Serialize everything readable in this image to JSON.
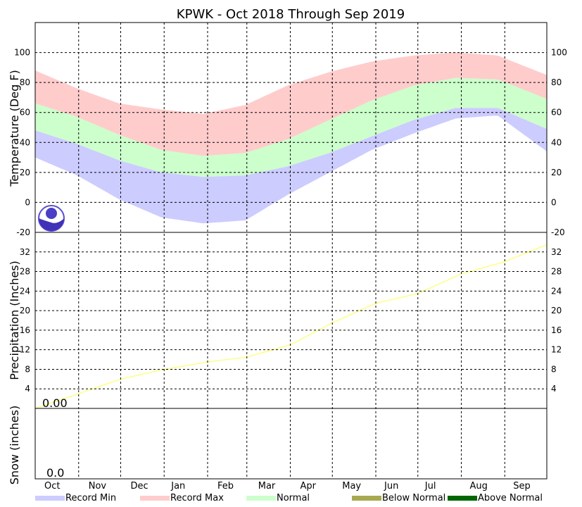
{
  "chart_data": {
    "type": "area",
    "title": "KPWK - Oct 2018 Through Sep 2019",
    "months": [
      "Oct",
      "Nov",
      "Dec",
      "Jan",
      "Feb",
      "Mar",
      "Apr",
      "May",
      "Jun",
      "Jul",
      "Aug",
      "Sep"
    ],
    "temperature": {
      "ylabel": "Temperature (Deg F)",
      "ylim": [
        -20,
        120
      ],
      "ticks": [
        "-20",
        "0",
        "20",
        "40",
        "60",
        "80",
        "100"
      ],
      "normal_high": [
        [
          0,
          66
        ],
        [
          30,
          57
        ],
        [
          60,
          45
        ],
        [
          90,
          35
        ],
        [
          120,
          31
        ],
        [
          150,
          33
        ],
        [
          180,
          42
        ],
        [
          210,
          55
        ],
        [
          240,
          68
        ],
        [
          270,
          78
        ],
        [
          300,
          83
        ],
        [
          330,
          82
        ],
        [
          365,
          69
        ]
      ],
      "normal_low": [
        [
          0,
          48
        ],
        [
          30,
          39
        ],
        [
          60,
          28
        ],
        [
          90,
          20
        ],
        [
          120,
          17
        ],
        [
          150,
          18
        ],
        [
          180,
          24
        ],
        [
          210,
          33
        ],
        [
          240,
          44
        ],
        [
          270,
          55
        ],
        [
          300,
          63
        ],
        [
          330,
          63
        ],
        [
          365,
          49
        ]
      ],
      "record_max": [
        [
          0,
          88
        ],
        [
          30,
          76
        ],
        [
          60,
          66
        ],
        [
          90,
          62
        ],
        [
          120,
          59
        ],
        [
          150,
          65
        ],
        [
          180,
          78
        ],
        [
          210,
          87
        ],
        [
          240,
          94
        ],
        [
          270,
          98
        ],
        [
          300,
          100
        ],
        [
          330,
          98
        ],
        [
          365,
          85
        ]
      ],
      "record_min": [
        [
          0,
          30
        ],
        [
          30,
          18
        ],
        [
          60,
          2
        ],
        [
          90,
          -10
        ],
        [
          120,
          -14
        ],
        [
          150,
          -12
        ],
        [
          180,
          5
        ],
        [
          210,
          20
        ],
        [
          240,
          35
        ],
        [
          270,
          46
        ],
        [
          300,
          56
        ],
        [
          330,
          58
        ],
        [
          365,
          34
        ]
      ]
    },
    "precipitation": {
      "ylabel": "Precipitation (Inches)",
      "ylim": [
        0,
        36
      ],
      "ticks": [
        "4",
        "8",
        "12",
        "16",
        "20",
        "24",
        "28",
        "32"
      ],
      "cumulative": [
        [
          0,
          0.0
        ],
        [
          31,
          3.0
        ],
        [
          61,
          6.0
        ],
        [
          92,
          8.0
        ],
        [
          123,
          9.5
        ],
        [
          151,
          10.5
        ],
        [
          182,
          13.0
        ],
        [
          212,
          17.5
        ],
        [
          243,
          21.5
        ],
        [
          273,
          23.5
        ],
        [
          304,
          27.5
        ],
        [
          335,
          30.0
        ],
        [
          365,
          33.5
        ]
      ],
      "start_label": "0.00"
    },
    "snow": {
      "ylabel": "Snow (inches)",
      "start_label": "0.0"
    },
    "legend": [
      {
        "label": "Record Min",
        "color": "#ccccff"
      },
      {
        "label": "Record Max",
        "color": "#ffcccc"
      },
      {
        "label": "Normal",
        "color": "#ccffcc"
      },
      {
        "label": "Below Normal",
        "color": "#a8a850"
      },
      {
        "label": "Above Normal",
        "color": "#006600"
      }
    ],
    "colors": {
      "record_min": "#ccccff",
      "record_max": "#ffcccc",
      "normal": "#ccffcc",
      "precip_line": "#ffff66"
    }
  }
}
